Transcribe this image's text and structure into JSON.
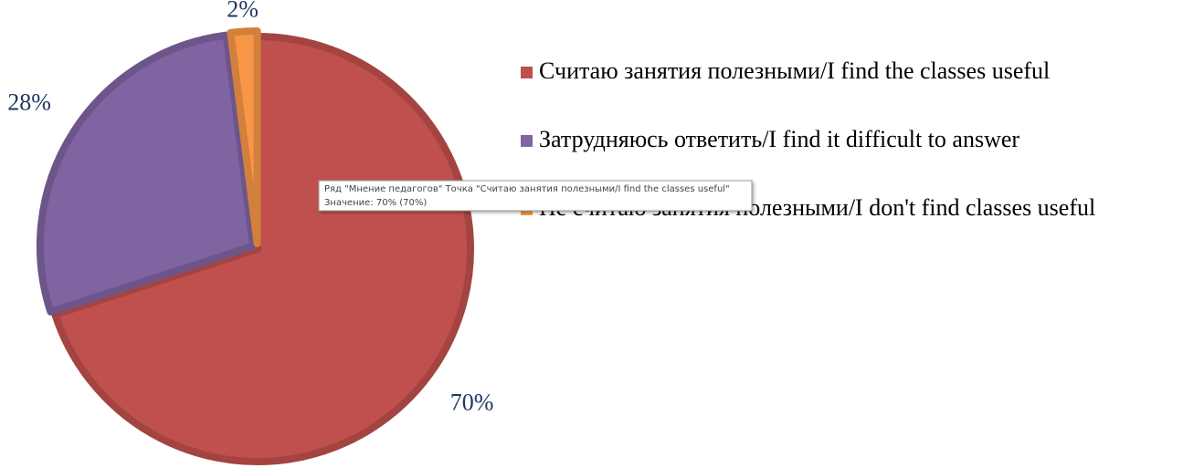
{
  "chart_data": {
    "type": "pie",
    "categories": [
      "Считаю занятия полезными/I find the classes useful",
      "Затрудняюсь ответить/I find it difficult to answer",
      "Не считаю занятия полезными/I don't find classes useful"
    ],
    "values": [
      70,
      28,
      2
    ],
    "value_labels": [
      "70%",
      "28%",
      "2%"
    ],
    "colors": [
      "#c0504d",
      "#8064a2",
      "#f79646"
    ],
    "legend": "right",
    "tooltip": {
      "line1": "Ряд \"Мнение педагогов\" Точка \"Считаю занятия полезными/I find the classes useful\"",
      "line2": "Значение: 70% (70%)"
    }
  }
}
